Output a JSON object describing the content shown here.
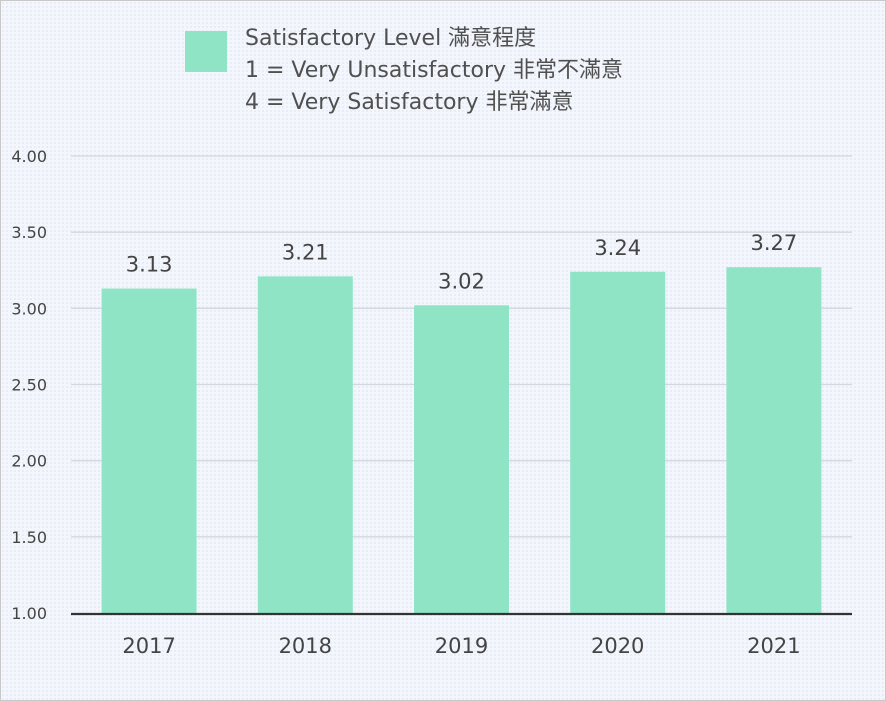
{
  "chart_data": {
    "type": "bar",
    "categories": [
      "2017",
      "2018",
      "2019",
      "2020",
      "2021"
    ],
    "values": [
      3.13,
      3.21,
      3.02,
      3.24,
      3.27
    ],
    "value_labels": [
      "3.13",
      "3.21",
      "3.02",
      "3.24",
      "3.27"
    ],
    "yticks": [
      "1.00",
      "1.50",
      "2.00",
      "2.50",
      "3.00",
      "3.50",
      "4.00"
    ],
    "ylim": [
      1,
      4
    ],
    "grid": true,
    "legend": {
      "placement": "top",
      "lines": [
        "Satisfactory Level 滿意程度",
        "1 = Very Unsatisfactory 非常不滿意",
        "4 = Very Satisfactory 非常滿意"
      ]
    },
    "colors": {
      "bar": "#90e4c6",
      "grid": "#d3d7df",
      "axis": "#333333"
    }
  }
}
